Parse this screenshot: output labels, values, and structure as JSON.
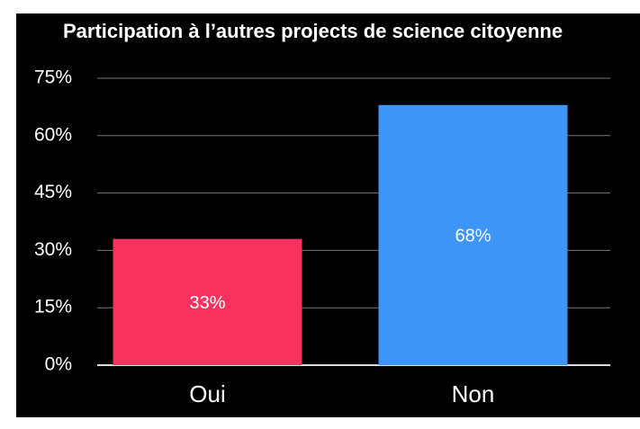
{
  "chart_data": {
    "type": "bar",
    "title": "Participation à l’autres projects de science citoyenne",
    "categories": [
      "Oui",
      "Non"
    ],
    "values": [
      33,
      68
    ],
    "value_labels": [
      "33%",
      "68%"
    ],
    "colors": [
      "#f7325f",
      "#3d95f8"
    ],
    "ylim": [
      0,
      75
    ],
    "yticks": [
      {
        "value": 0,
        "label": "0%"
      },
      {
        "value": 15,
        "label": "15%"
      },
      {
        "value": 30,
        "label": "30%"
      },
      {
        "value": 45,
        "label": "45%"
      },
      {
        "value": 60,
        "label": "60%"
      },
      {
        "value": 75,
        "label": "75%"
      }
    ],
    "grid": true
  }
}
